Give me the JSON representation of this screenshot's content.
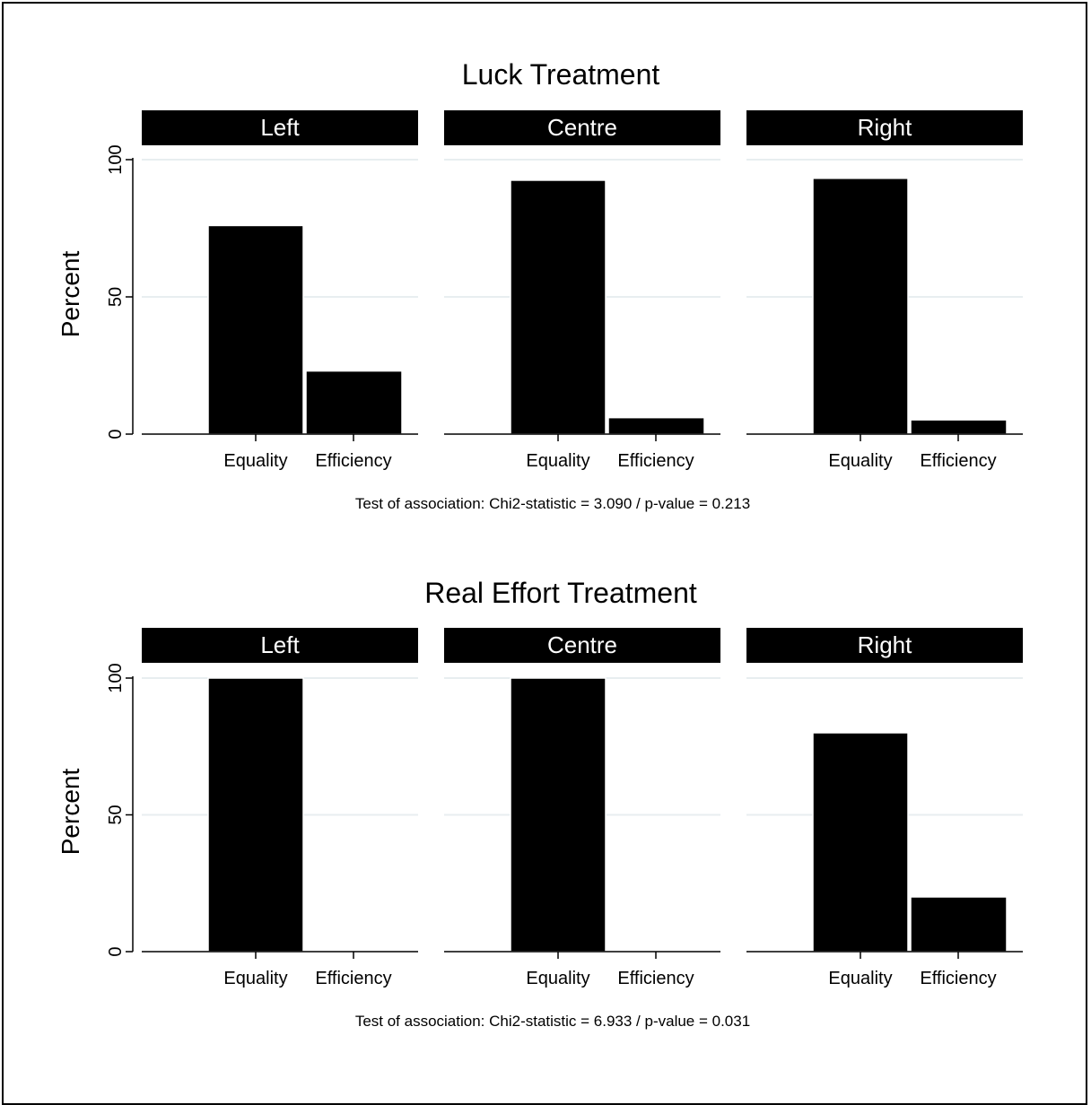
{
  "chart_data": [
    {
      "type": "bar",
      "title": "Luck Treatment",
      "ylabel": "Percent",
      "ylim": [
        0,
        100
      ],
      "yticks": [
        0,
        50,
        100
      ],
      "categories": [
        "Equality",
        "Efficiency"
      ],
      "panels": [
        {
          "name": "Left",
          "values": [
            76,
            23
          ]
        },
        {
          "name": "Centre",
          "values": [
            92.5,
            6
          ]
        },
        {
          "name": "Right",
          "values": [
            93.2,
            5.2
          ]
        }
      ],
      "note": "Test of association: Chi2-statistic = 3.090 / p-value = 0.213",
      "grid": true,
      "bar_color": "#000000",
      "strip_color": "#000000",
      "grid_color": "#e8eef0"
    },
    {
      "type": "bar",
      "title": "Real Effort Treatment",
      "ylabel": "Percent",
      "ylim": [
        0,
        100
      ],
      "yticks": [
        0,
        50,
        100
      ],
      "categories": [
        "Equality",
        "Efficiency"
      ],
      "panels": [
        {
          "name": "Left",
          "values": [
            100,
            0
          ]
        },
        {
          "name": "Centre",
          "values": [
            100,
            0
          ]
        },
        {
          "name": "Right",
          "values": [
            80,
            20
          ]
        }
      ],
      "note": "Test of association: Chi2-statistic = 6.933 / p-value = 0.031",
      "grid": true,
      "bar_color": "#000000",
      "strip_color": "#000000",
      "grid_color": "#e8eef0"
    }
  ]
}
